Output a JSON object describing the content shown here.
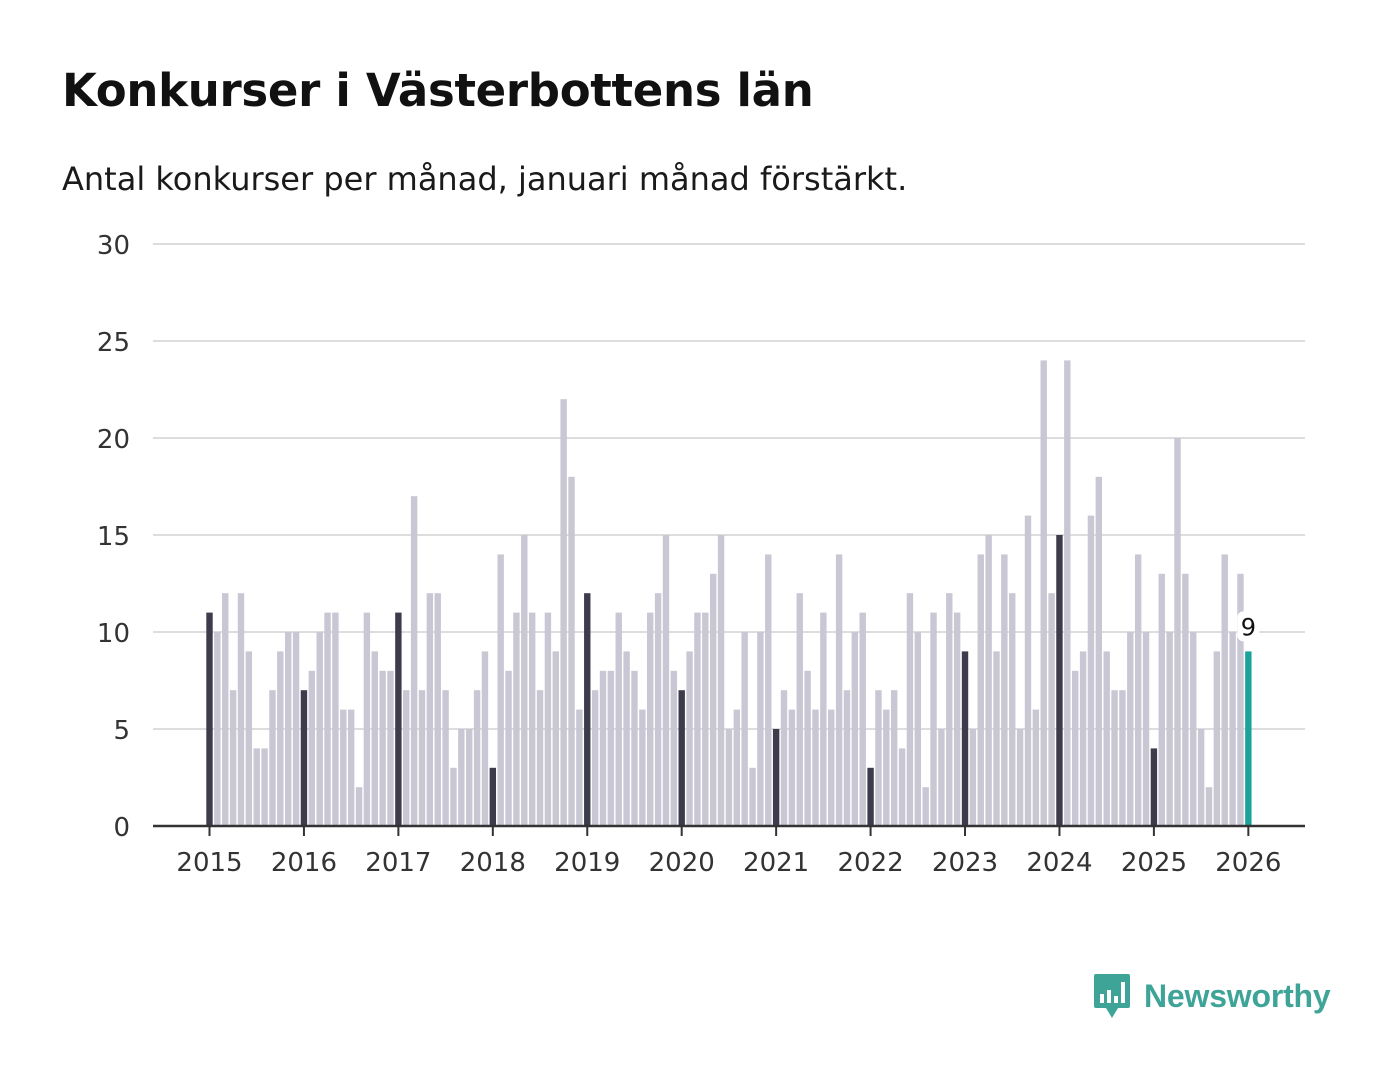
{
  "header": {
    "title": "Konkurser i Västerbottens län",
    "subtitle": "Antal konkurser per månad, januari månad förstärkt."
  },
  "brand": {
    "name": "Newsworthy",
    "icon": "newsworthy-logo-icon",
    "color": "#3ea498"
  },
  "colors": {
    "bar": "#c8c7d3",
    "january": "#3d3c4c",
    "latest": "#1aa39a",
    "grid": "#dddddd",
    "axis": "#333333"
  },
  "chart_data": {
    "type": "bar",
    "title": "Konkurser i Västerbottens län",
    "xlabel": "",
    "ylabel": "",
    "ylim": [
      0,
      30
    ],
    "yticks": [
      0,
      5,
      10,
      15,
      20,
      25,
      30
    ],
    "xtick_labels": [
      "2015",
      "2016",
      "2017",
      "2018",
      "2019",
      "2020",
      "2021",
      "2022",
      "2023",
      "2024",
      "2025",
      "2026"
    ],
    "start": "2015-01",
    "end": "2026-01",
    "highlight": "januari",
    "latest_label": "9",
    "values": [
      11,
      10,
      12,
      7,
      12,
      9,
      4,
      4,
      7,
      9,
      10,
      10,
      7,
      8,
      10,
      11,
      11,
      6,
      6,
      2,
      11,
      9,
      8,
      8,
      11,
      7,
      17,
      7,
      12,
      12,
      7,
      3,
      5,
      5,
      7,
      9,
      3,
      14,
      8,
      11,
      15,
      11,
      7,
      11,
      9,
      22,
      18,
      6,
      12,
      7,
      8,
      8,
      11,
      9,
      8,
      6,
      11,
      12,
      15,
      8,
      7,
      9,
      11,
      11,
      13,
      15,
      5,
      6,
      10,
      3,
      10,
      14,
      5,
      7,
      6,
      12,
      8,
      6,
      11,
      6,
      14,
      7,
      10,
      11,
      3,
      7,
      6,
      7,
      4,
      12,
      10,
      2,
      11,
      5,
      12,
      11,
      9,
      5,
      14,
      15,
      9,
      14,
      12,
      5,
      16,
      6,
      24,
      12,
      15,
      24,
      8,
      9,
      16,
      18,
      9,
      7,
      7,
      10,
      14,
      10,
      4,
      13,
      10,
      20,
      13,
      10,
      5,
      2,
      9,
      14,
      10,
      13,
      9
    ]
  }
}
